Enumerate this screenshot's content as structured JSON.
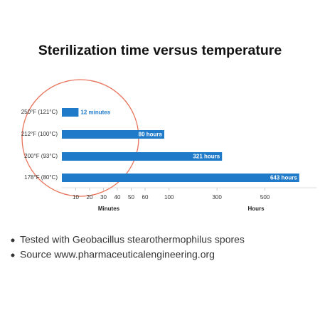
{
  "chart_data": {
    "type": "bar",
    "orientation": "horizontal",
    "title": "Sterilization time versus temperature",
    "categories": [
      "250°F (121°C)",
      "212°F (100°C)",
      "200°F (93°C)",
      "178°F (80°C)"
    ],
    "values": [
      12,
      80,
      321,
      643
    ],
    "value_labels": [
      "12 minutes",
      "80 hours",
      "321 hours",
      "643 hours"
    ],
    "axes": [
      "x",
      "x2",
      "x2",
      "x2"
    ],
    "color": "#1f7bc9",
    "xlabel": "Minutes",
    "xlim": [
      0,
      60
    ],
    "xticks": [
      10,
      20,
      30,
      40,
      50,
      60
    ],
    "x2label": "Hours",
    "x2lim": [
      0,
      700
    ],
    "x2ticks": [
      100,
      300,
      500
    ],
    "notes": [
      "Tested with Geobacillus stearothermophilus spores",
      "Source www.pharmaceuticalengineering.org"
    ]
  }
}
